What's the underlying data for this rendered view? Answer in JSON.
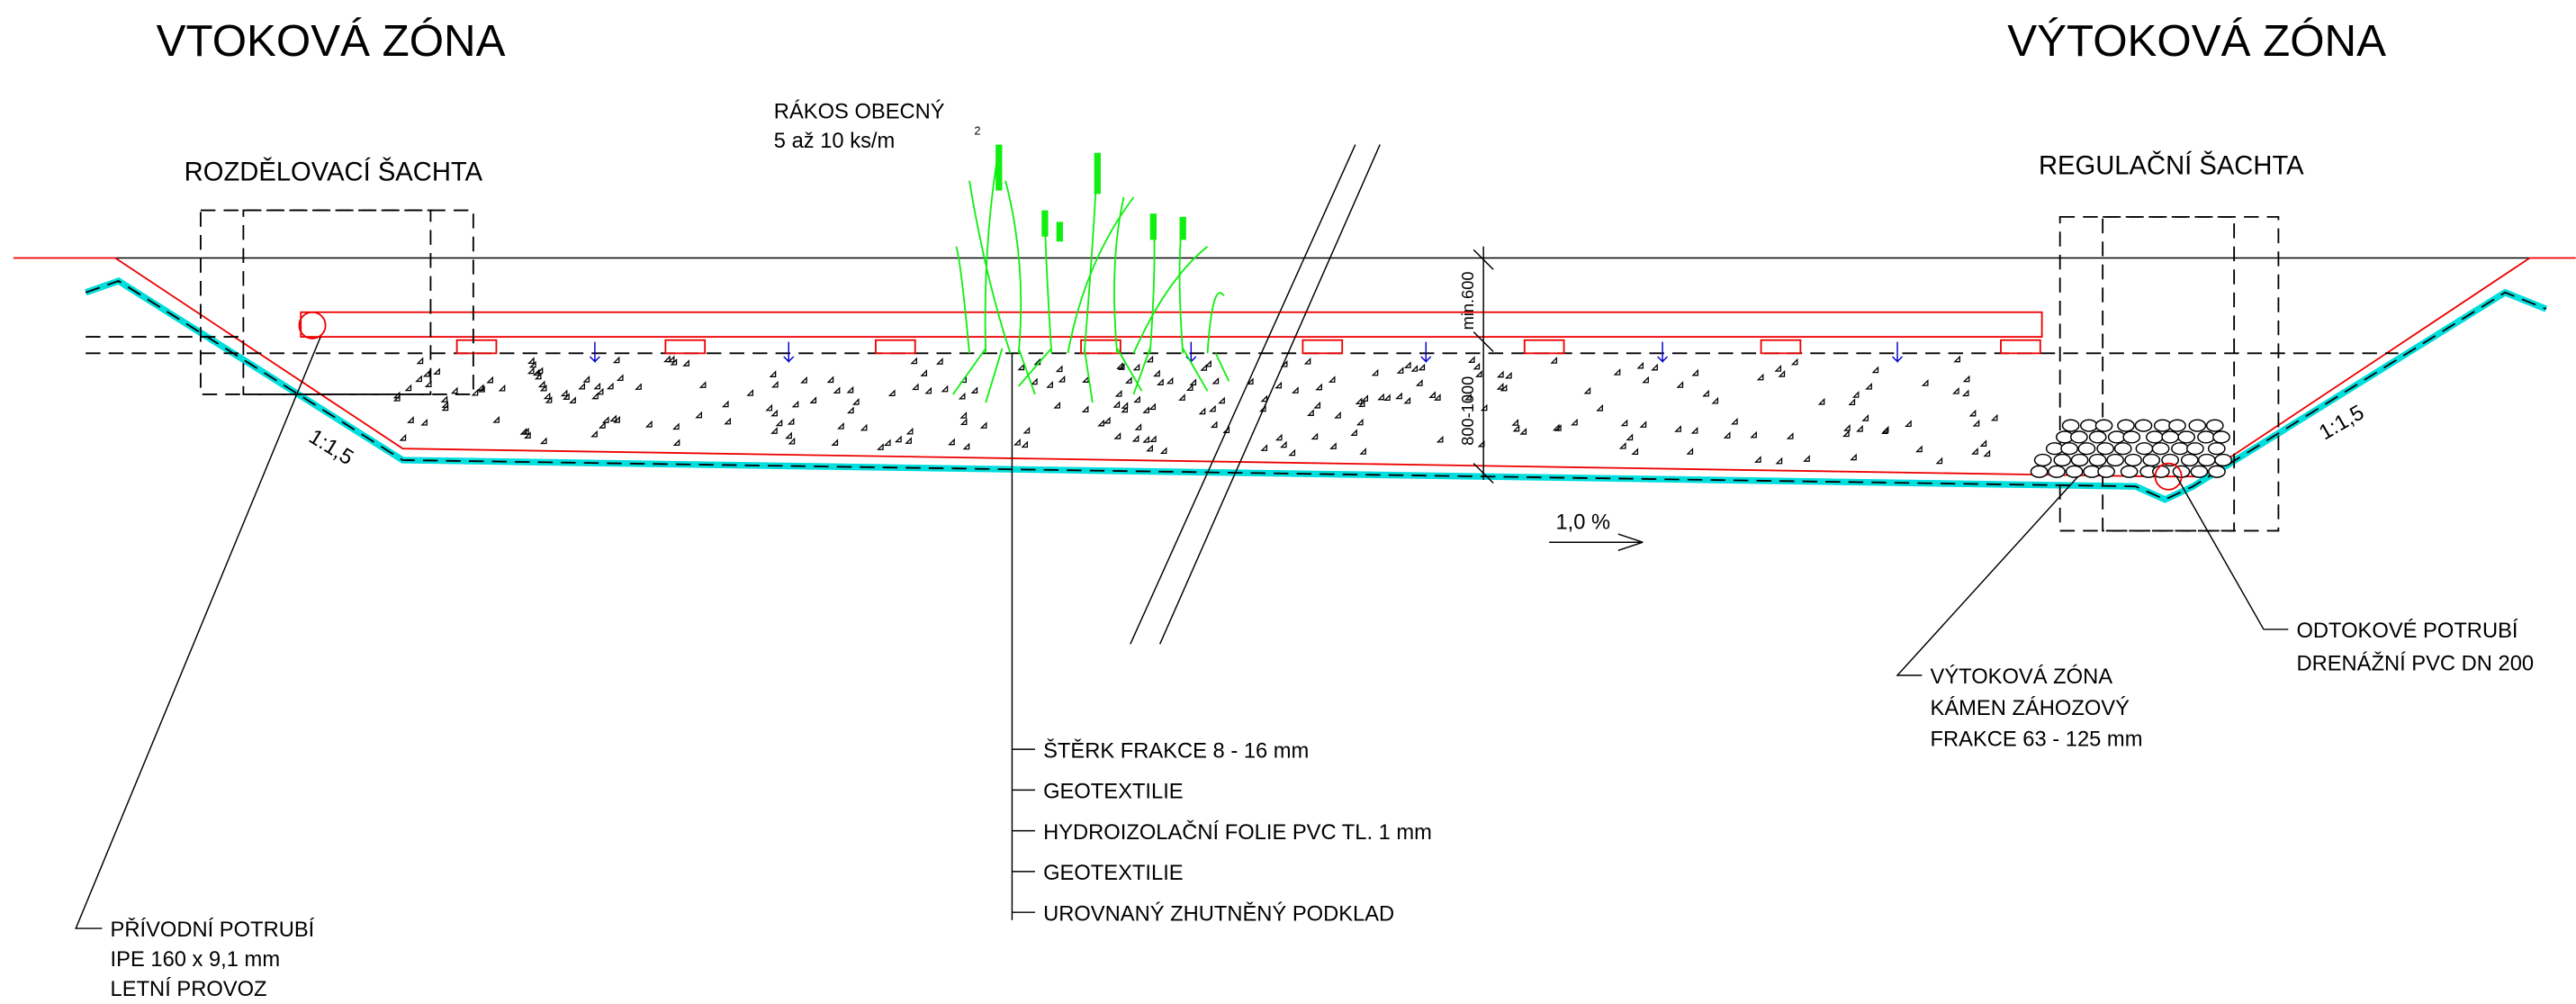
{
  "zones": {
    "inflow": "VTOKOVÁ ZÓNA",
    "outflow": "VÝTOKOVÁ ZÓNA"
  },
  "shafts": {
    "distribution": "ROZDĚLOVACÍ ŠACHTA",
    "regulation": "REGULAČNÍ ŠACHTA"
  },
  "plant": {
    "name": "RÁKOS OBECNÝ",
    "density": "5 až 10 ks/m",
    "density_exponent": "2"
  },
  "dimensions": {
    "top": "min.600",
    "depth": "800-1000"
  },
  "slopes": {
    "left": "1:1,5",
    "right": "1:1,5",
    "bottom": "1,0 %"
  },
  "layers": [
    "ŠTĚRK FRAKCE 8 - 16 mm",
    "GEOTEXTILIE",
    "HYDROIZOLAČNÍ FOLIE PVC TL. 1 mm",
    "GEOTEXTILIE",
    "UROVNANÝ ZHUTNĚNÝ PODKLAD"
  ],
  "callouts": {
    "inlet_pipe": [
      "PŘÍVODNÍ POTRUBÍ",
      "IPE 160 x 9,1 mm",
      "LETNÍ PROVOZ"
    ],
    "outflow_stone": [
      "VÝTOKOVÁ ZÓNA",
      "KÁMEN ZÁHOZOVÝ",
      "FRAKCE 63 - 125 mm"
    ],
    "outlet_pipe": [
      "ODTOKOVÉ POTRUBÍ",
      "DRENÁŽNÍ PVC DN 200"
    ]
  }
}
